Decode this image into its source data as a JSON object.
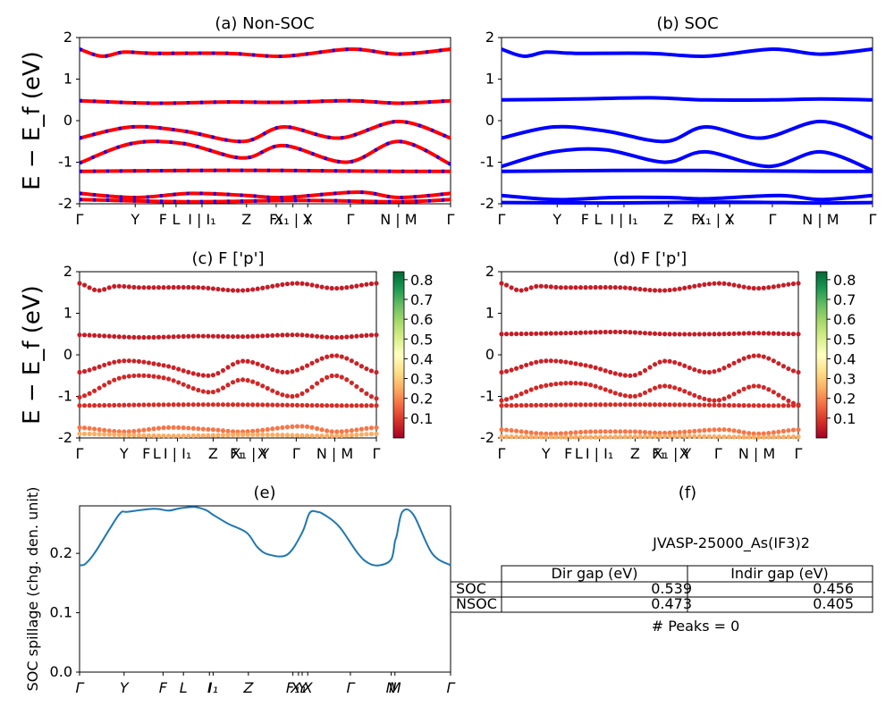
{
  "figure_info": {
    "jid_label": "JVASP-25000_As(IF3)2",
    "peaks_label": "# Peaks = 0"
  },
  "gap_table": {
    "columns": [
      "Dir gap (eV)",
      "Indir gap (eV)"
    ],
    "rows": [
      {
        "label": "SOC",
        "dir": "0.539",
        "indir": "0.456"
      },
      {
        "label": "NSOC",
        "dir": "0.473",
        "indir": "0.405"
      }
    ]
  },
  "chart_data": [
    {
      "id": "a",
      "type": "line",
      "title": "(a) Non-SOC",
      "ylabel": "E − E_f (eV)",
      "ylim": [
        -2,
        2
      ],
      "yticks": [
        -2,
        -1,
        0,
        1,
        2
      ],
      "xticks": [
        "Γ",
        "Y",
        "F",
        "L",
        "I | I₁",
        "Z",
        "F₁",
        "X₁ | Y",
        "X",
        "Γ",
        "N | M",
        "Γ"
      ],
      "series_colors": [
        "#ff0000",
        "#0000ff"
      ],
      "series": [
        {
          "x": [
            0,
            0.06,
            0.12,
            0.2,
            0.4,
            0.55,
            0.73,
            0.86,
            1
          ],
          "y": [
            1.72,
            1.55,
            1.65,
            1.62,
            1.62,
            1.55,
            1.72,
            1.6,
            1.72
          ]
        },
        {
          "x": [
            0,
            0.2,
            0.4,
            0.55,
            0.73,
            0.86,
            1
          ],
          "y": [
            0.48,
            0.42,
            0.45,
            0.44,
            0.48,
            0.42,
            0.48
          ]
        },
        {
          "x": [
            0,
            0.14,
            0.28,
            0.44,
            0.55,
            0.7,
            0.86,
            1
          ],
          "y": [
            -0.42,
            -0.15,
            -0.25,
            -0.5,
            -0.15,
            -0.42,
            -0.02,
            -0.42
          ]
        },
        {
          "x": [
            0,
            0.14,
            0.28,
            0.44,
            0.55,
            0.72,
            0.86,
            1
          ],
          "y": [
            -1.02,
            -0.55,
            -0.55,
            -0.9,
            -0.6,
            -1.0,
            -0.5,
            -1.05
          ]
        },
        {
          "x": [
            0,
            0.3,
            0.55,
            0.86,
            1
          ],
          "y": [
            -1.22,
            -1.2,
            -1.2,
            -1.22,
            -1.22
          ]
        },
        {
          "x": [
            0,
            0.15,
            0.3,
            0.45,
            0.55,
            0.75,
            0.86,
            1
          ],
          "y": [
            -1.75,
            -1.85,
            -1.75,
            -1.8,
            -1.85,
            -1.72,
            -1.85,
            -1.75
          ]
        },
        {
          "x": [
            0,
            0.3,
            0.6,
            0.86,
            1
          ],
          "y": [
            -1.9,
            -1.95,
            -1.92,
            -1.95,
            -1.9
          ]
        }
      ]
    },
    {
      "id": "b",
      "type": "line",
      "title": "(b) SOC",
      "ylim": [
        -2,
        2
      ],
      "yticks": [
        -2,
        -1,
        0,
        1,
        2
      ],
      "xticks": [
        "Γ",
        "Y",
        "F",
        "L",
        "I | I₁",
        "Z",
        "F₁",
        "X₁ | Y",
        "X",
        "Γ",
        "N | M",
        "Γ"
      ],
      "series_colors": [
        "#0000ff"
      ],
      "series": [
        {
          "x": [
            0,
            0.06,
            0.12,
            0.2,
            0.4,
            0.55,
            0.73,
            0.86,
            1
          ],
          "y": [
            1.72,
            1.55,
            1.65,
            1.62,
            1.62,
            1.55,
            1.72,
            1.6,
            1.72
          ]
        },
        {
          "x": [
            0,
            0.2,
            0.4,
            0.55,
            0.73,
            0.86,
            1
          ],
          "y": [
            0.5,
            0.52,
            0.55,
            0.5,
            0.5,
            0.52,
            0.5
          ]
        },
        {
          "x": [
            0,
            0.14,
            0.28,
            0.44,
            0.55,
            0.7,
            0.86,
            1
          ],
          "y": [
            -0.42,
            -0.15,
            -0.25,
            -0.5,
            -0.15,
            -0.42,
            -0.02,
            -0.42
          ]
        },
        {
          "x": [
            0,
            0.14,
            0.28,
            0.44,
            0.55,
            0.72,
            0.86,
            1
          ],
          "y": [
            -1.1,
            -0.75,
            -0.7,
            -1.0,
            -0.75,
            -1.1,
            -0.75,
            -1.2
          ]
        },
        {
          "x": [
            0,
            0.3,
            0.55,
            0.86,
            1
          ],
          "y": [
            -1.22,
            -1.2,
            -1.2,
            -1.22,
            -1.22
          ]
        },
        {
          "x": [
            0,
            0.15,
            0.3,
            0.45,
            0.55,
            0.75,
            0.86,
            1
          ],
          "y": [
            -1.8,
            -1.9,
            -1.85,
            -1.85,
            -1.88,
            -1.8,
            -1.9,
            -1.8
          ]
        },
        {
          "x": [
            0,
            0.3,
            0.6,
            0.86,
            1
          ],
          "y": [
            -1.97,
            -1.98,
            -1.96,
            -1.98,
            -1.97
          ]
        }
      ]
    },
    {
      "id": "c",
      "type": "scatter",
      "title": "(c)  F ['p']",
      "ylabel": "E − E_f (eV)",
      "ylim": [
        -2,
        2
      ],
      "yticks": [
        -2,
        -1,
        0,
        1,
        2
      ],
      "xticks": [
        "Γ",
        "Y",
        "F",
        "L",
        "I | I₁",
        "Z",
        "F₁",
        "X₁ | Y",
        "X",
        "Γ",
        "N | M",
        "Γ"
      ],
      "colorbar_ticks": [
        "0.1",
        "0.2",
        "0.3",
        "0.4",
        "0.5",
        "0.6",
        "0.7",
        "0.8"
      ],
      "colorbar_range": [
        0.0,
        0.84
      ],
      "bands": [
        {
          "x": [
            0,
            0.06,
            0.12,
            0.2,
            0.4,
            0.55,
            0.73,
            0.86,
            1
          ],
          "y": [
            1.72,
            1.55,
            1.65,
            1.62,
            1.62,
            1.55,
            1.72,
            1.6,
            1.72
          ],
          "weight": 0.05
        },
        {
          "x": [
            0,
            0.2,
            0.4,
            0.55,
            0.73,
            0.86,
            1
          ],
          "y": [
            0.48,
            0.42,
            0.45,
            0.44,
            0.48,
            0.42,
            0.48
          ],
          "weight": 0.05
        },
        {
          "x": [
            0,
            0.14,
            0.28,
            0.44,
            0.55,
            0.7,
            0.86,
            1
          ],
          "y": [
            -0.42,
            -0.15,
            -0.25,
            -0.5,
            -0.15,
            -0.42,
            -0.02,
            -0.42
          ],
          "weight": 0.06
        },
        {
          "x": [
            0,
            0.14,
            0.28,
            0.44,
            0.55,
            0.72,
            0.86,
            1
          ],
          "y": [
            -1.02,
            -0.55,
            -0.55,
            -0.9,
            -0.6,
            -1.0,
            -0.5,
            -1.05
          ],
          "weight": 0.07
        },
        {
          "x": [
            0,
            0.3,
            0.55,
            0.86,
            1
          ],
          "y": [
            -1.22,
            -1.2,
            -1.2,
            -1.22,
            -1.22
          ],
          "weight": 0.08
        },
        {
          "x": [
            0,
            0.15,
            0.3,
            0.45,
            0.55,
            0.75,
            0.86,
            1
          ],
          "y": [
            -1.75,
            -1.85,
            -1.75,
            -1.8,
            -1.85,
            -1.72,
            -1.85,
            -1.75
          ],
          "weight": 0.18
        },
        {
          "x": [
            0,
            0.3,
            0.6,
            0.86,
            1
          ],
          "y": [
            -1.9,
            -1.95,
            -1.92,
            -1.95,
            -1.9
          ],
          "weight": 0.25
        }
      ]
    },
    {
      "id": "d",
      "type": "scatter",
      "title": "(d) F ['p']",
      "ylim": [
        -2,
        2
      ],
      "yticks": [
        -2,
        -1,
        0,
        1,
        2
      ],
      "xticks": [
        "Γ",
        "Y",
        "F",
        "L",
        "I | I₁",
        "Z",
        "F₁",
        "X₁ | Y",
        "X",
        "Γ",
        "N | M",
        "Γ"
      ],
      "colorbar_ticks": [
        "0.1",
        "0.2",
        "0.3",
        "0.4",
        "0.5",
        "0.6",
        "0.7",
        "0.8"
      ],
      "colorbar_range": [
        0.0,
        0.84
      ],
      "bands": [
        {
          "x": [
            0,
            0.06,
            0.12,
            0.2,
            0.4,
            0.55,
            0.73,
            0.86,
            1
          ],
          "y": [
            1.72,
            1.55,
            1.65,
            1.62,
            1.62,
            1.55,
            1.72,
            1.6,
            1.72
          ],
          "weight": 0.05
        },
        {
          "x": [
            0,
            0.2,
            0.4,
            0.55,
            0.73,
            0.86,
            1
          ],
          "y": [
            0.5,
            0.52,
            0.55,
            0.5,
            0.5,
            0.52,
            0.5
          ],
          "weight": 0.05
        },
        {
          "x": [
            0,
            0.14,
            0.28,
            0.44,
            0.55,
            0.7,
            0.86,
            1
          ],
          "y": [
            -0.42,
            -0.15,
            -0.25,
            -0.5,
            -0.15,
            -0.42,
            -0.02,
            -0.42
          ],
          "weight": 0.06
        },
        {
          "x": [
            0,
            0.14,
            0.28,
            0.44,
            0.55,
            0.72,
            0.86,
            1
          ],
          "y": [
            -1.1,
            -0.75,
            -0.7,
            -1.0,
            -0.75,
            -1.1,
            -0.75,
            -1.2
          ],
          "weight": 0.07
        },
        {
          "x": [
            0,
            0.3,
            0.55,
            0.86,
            1
          ],
          "y": [
            -1.22,
            -1.2,
            -1.2,
            -1.22,
            -1.22
          ],
          "weight": 0.08
        },
        {
          "x": [
            0,
            0.15,
            0.3,
            0.45,
            0.55,
            0.75,
            0.86,
            1
          ],
          "y": [
            -1.8,
            -1.9,
            -1.85,
            -1.85,
            -1.88,
            -1.8,
            -1.9,
            -1.8
          ],
          "weight": 0.18
        },
        {
          "x": [
            0,
            0.3,
            0.6,
            0.86,
            1
          ],
          "y": [
            -1.97,
            -1.98,
            -1.96,
            -1.98,
            -1.97
          ],
          "weight": 0.25
        }
      ]
    },
    {
      "id": "e",
      "type": "line",
      "title": "(e)",
      "ylabel": "SOC spillage (chg. den. unit)",
      "ylim": [
        0,
        0.28
      ],
      "yticks": [
        "0.0",
        "0.1",
        "0.2"
      ],
      "yticks_values": [
        0,
        0.1,
        0.2
      ],
      "xticks": [
        "Γ",
        "Y",
        "F",
        "L",
        "I",
        "I₁",
        "Z",
        "F₁",
        "X₁",
        "Y",
        "X",
        "Γ",
        "N",
        "M",
        "Γ"
      ],
      "series_colors": [
        "#1f77b4"
      ],
      "x": [
        0,
        0.015,
        0.04,
        0.08,
        0.11,
        0.13,
        0.2,
        0.24,
        0.27,
        0.31,
        0.34,
        0.36,
        0.4,
        0.45,
        0.48,
        0.51,
        0.56,
        0.6,
        0.62,
        0.64,
        0.66,
        0.7,
        0.75,
        0.78,
        0.81,
        0.84,
        0.85,
        0.855,
        0.87,
        0.9,
        0.95,
        1.0
      ],
      "y": [
        0.18,
        0.182,
        0.2,
        0.24,
        0.268,
        0.27,
        0.275,
        0.272,
        0.276,
        0.278,
        0.273,
        0.265,
        0.25,
        0.235,
        0.21,
        0.198,
        0.198,
        0.235,
        0.268,
        0.27,
        0.265,
        0.245,
        0.2,
        0.183,
        0.18,
        0.19,
        0.22,
        0.23,
        0.27,
        0.265,
        0.2,
        0.18
      ]
    },
    {
      "id": "f",
      "type": "table",
      "title": "(f)"
    }
  ]
}
